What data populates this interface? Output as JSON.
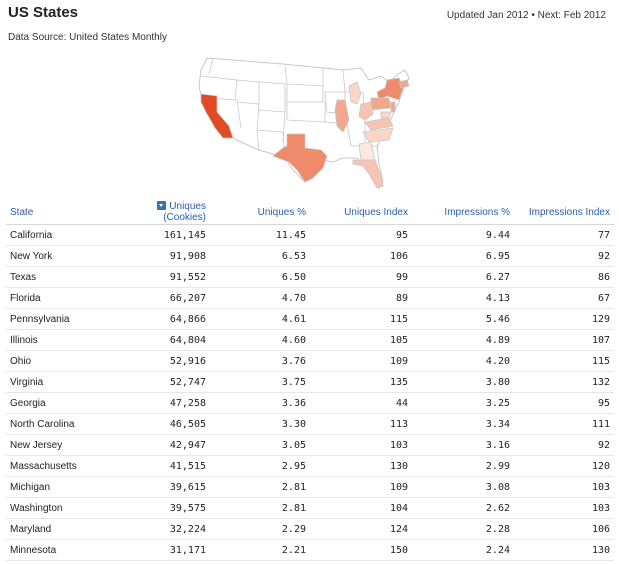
{
  "header": {
    "title": "US States",
    "subtitle": "Data Source: United States Monthly",
    "updated": "Updated Jan 2012 • Next: Feb 2012"
  },
  "map": {
    "fill_scale": [
      "#fde8df",
      "#f8c3b0",
      "#ef8a6b",
      "#e04a24"
    ],
    "base_fill": "#ffffff",
    "stroke": "#c8c8c8"
  },
  "table": {
    "columns": [
      "State",
      "Uniques (Cookies)",
      "Uniques %",
      "Uniques Index",
      "Impressions %",
      "Impressions Index"
    ],
    "sort_icon": "sort-desc-icon",
    "rows": [
      {
        "state": "California",
        "uniques": "161,145",
        "uniques_pct": "11.45",
        "uniques_index": "95",
        "imp_pct": "9.44",
        "imp_index": "77"
      },
      {
        "state": "New York",
        "uniques": "91,908",
        "uniques_pct": "6.53",
        "uniques_index": "106",
        "imp_pct": "6.95",
        "imp_index": "92"
      },
      {
        "state": "Texas",
        "uniques": "91,552",
        "uniques_pct": "6.50",
        "uniques_index": "99",
        "imp_pct": "6.27",
        "imp_index": "86"
      },
      {
        "state": "Florida",
        "uniques": "66,207",
        "uniques_pct": "4.70",
        "uniques_index": "89",
        "imp_pct": "4.13",
        "imp_index": "67"
      },
      {
        "state": "Pennsylvania",
        "uniques": "64,866",
        "uniques_pct": "4.61",
        "uniques_index": "115",
        "imp_pct": "5.46",
        "imp_index": "129"
      },
      {
        "state": "Illinois",
        "uniques": "64,804",
        "uniques_pct": "4.60",
        "uniques_index": "105",
        "imp_pct": "4.89",
        "imp_index": "107"
      },
      {
        "state": "Ohio",
        "uniques": "52,916",
        "uniques_pct": "3.76",
        "uniques_index": "109",
        "imp_pct": "4.20",
        "imp_index": "115"
      },
      {
        "state": "Virginia",
        "uniques": "52,747",
        "uniques_pct": "3.75",
        "uniques_index": "135",
        "imp_pct": "3.80",
        "imp_index": "132"
      },
      {
        "state": "Georgia",
        "uniques": "47,258",
        "uniques_pct": "3.36",
        "uniques_index": "44",
        "imp_pct": "3.25",
        "imp_index": "95"
      },
      {
        "state": "North Carolina",
        "uniques": "46,505",
        "uniques_pct": "3.30",
        "uniques_index": "113",
        "imp_pct": "3.34",
        "imp_index": "111"
      },
      {
        "state": "New Jersey",
        "uniques": "42,947",
        "uniques_pct": "3.05",
        "uniques_index": "103",
        "imp_pct": "3.16",
        "imp_index": "92"
      },
      {
        "state": "Massachusetts",
        "uniques": "41,515",
        "uniques_pct": "2.95",
        "uniques_index": "130",
        "imp_pct": "2.99",
        "imp_index": "120"
      },
      {
        "state": "Michigan",
        "uniques": "39,615",
        "uniques_pct": "2.81",
        "uniques_index": "109",
        "imp_pct": "3.08",
        "imp_index": "103"
      },
      {
        "state": "Washington",
        "uniques": "39,575",
        "uniques_pct": "2.81",
        "uniques_index": "104",
        "imp_pct": "2.62",
        "imp_index": "103"
      },
      {
        "state": "Maryland",
        "uniques": "32,224",
        "uniques_pct": "2.29",
        "uniques_index": "124",
        "imp_pct": "2.28",
        "imp_index": "106"
      },
      {
        "state": "Minnesota",
        "uniques": "31,171",
        "uniques_pct": "2.21",
        "uniques_index": "150",
        "imp_pct": "2.24",
        "imp_index": "130"
      }
    ]
  }
}
